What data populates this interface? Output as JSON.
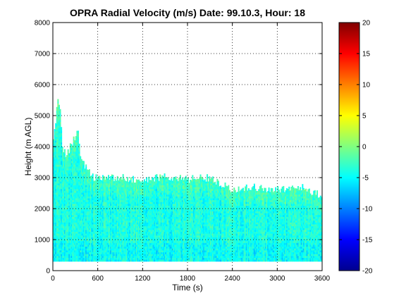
{
  "chart_data": {
    "type": "heatmap",
    "title": "OPRA Radial Velocity (m/s)  Date: 99.10.3, Hour: 18",
    "xlabel": "Time (s)",
    "ylabel": "Height (m AGL)",
    "xlim": [
      0,
      3600
    ],
    "ylim": [
      0,
      8000
    ],
    "xticks": [
      0,
      600,
      1200,
      1800,
      2400,
      3000,
      3600
    ],
    "xtick_labels": [
      "0",
      "600",
      "1200",
      "1800",
      "2400",
      "3000",
      "3600"
    ],
    "yticks": [
      0,
      1000,
      2000,
      3000,
      4000,
      5000,
      6000,
      7000,
      8000
    ],
    "ytick_labels": [
      "0",
      "1000",
      "2000",
      "3000",
      "4000",
      "5000",
      "6000",
      "7000",
      "8000"
    ],
    "grid": true,
    "colorbar": {
      "min": -20,
      "max": 20,
      "ticks": [
        20,
        15,
        10,
        5,
        0,
        -5,
        -10,
        -15,
        -20
      ],
      "tick_labels": [
        "20",
        "15",
        "10",
        "5",
        "0",
        "-5",
        "-10",
        "-15",
        "-20"
      ],
      "colormap": "jet"
    },
    "data_region": {
      "bottom_height": 300,
      "top_height_profile": {
        "time": [
          0,
          60,
          90,
          120,
          180,
          240,
          300,
          330,
          360,
          420,
          480,
          540,
          600,
          900,
          1200,
          1500,
          1800,
          2100,
          2400,
          2700,
          3000,
          3300,
          3600
        ],
        "height": [
          4200,
          5500,
          5300,
          4000,
          3700,
          4100,
          4300,
          4500,
          3800,
          3400,
          3200,
          3000,
          3000,
          3000,
          2900,
          3050,
          2950,
          3000,
          2600,
          2700,
          2600,
          2700,
          2400
        ]
      },
      "velocity_range": [
        -9,
        1
      ],
      "typical_velocity": -4
    }
  }
}
